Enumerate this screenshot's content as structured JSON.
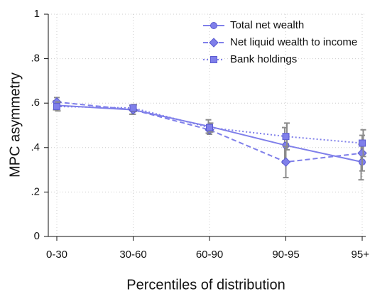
{
  "chart_data": {
    "type": "line",
    "x_label": "Percentiles of distribution",
    "y_label": "MPC asymmetry",
    "categories": [
      "0-30",
      "30-60",
      "60-90",
      "90-95",
      "95+"
    ],
    "ylim": [
      0,
      1
    ],
    "yticks": [
      0,
      {
        "value": 0.2,
        "label": ".2"
      },
      {
        "value": 0.4,
        "label": ".4"
      },
      {
        "value": 0.6,
        "label": ".6"
      },
      {
        "value": 0.8,
        "label": ".8"
      },
      1
    ],
    "grid": true,
    "legend": "top-right",
    "error_color": "#8c8c8c",
    "series": [
      {
        "name": "Total net wealth",
        "color": "#7f7fea",
        "marker": "circle",
        "dash": "solid",
        "values": [
          0.59,
          0.57,
          0.495,
          0.41,
          0.335
        ],
        "errors": [
          0.02,
          0.02,
          0.03,
          0.08,
          0.08
        ]
      },
      {
        "name": "Net liquid wealth to income",
        "color": "#7f7fea",
        "marker": "diamond",
        "dash": "dashed",
        "values": [
          0.605,
          0.57,
          0.48,
          0.335,
          0.375
        ],
        "errors": [
          0.02,
          0.02,
          0.02,
          0.07,
          0.08
        ]
      },
      {
        "name": "Bank holdings",
        "color": "#7f7fea",
        "marker": "square",
        "dash": "dotted",
        "values": [
          0.585,
          0.578,
          0.49,
          0.45,
          0.42
        ],
        "errors": [
          0.02,
          0.015,
          0.02,
          0.06,
          0.06
        ]
      }
    ]
  }
}
